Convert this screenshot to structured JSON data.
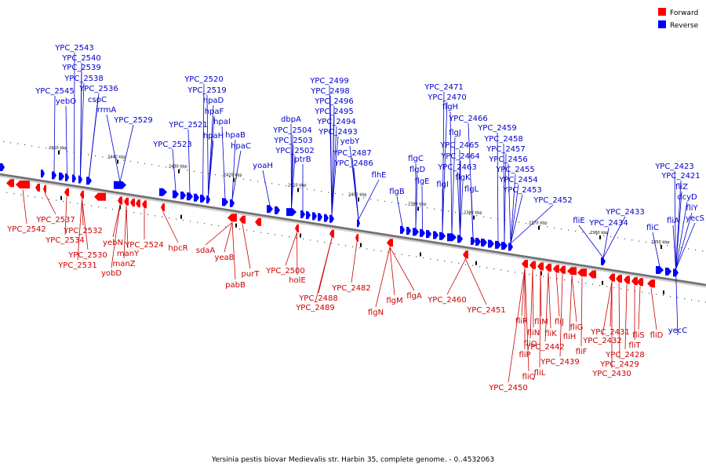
{
  "legend": {
    "forward": {
      "label": "Forward",
      "color": "#ff0000"
    },
    "reverse": {
      "label": "Reverse",
      "color": "#0000ff"
    }
  },
  "caption": "Yersinia pestis biovar Medievalis str. Harbin 35, complete genome. - 0..4532063",
  "ticks": [
    "2450 kbp",
    "2440 kbp",
    "2430 kbp",
    "2420 kbp",
    "2410 kbp",
    "2400 kbp",
    "2390 kbp",
    "2380 kbp",
    "2370 kbp",
    "2360 kbp",
    "2350 kbp"
  ],
  "reverse_labels": [
    "YPC_2543",
    "YPC_2540",
    "YPC_2539",
    "YPC_2538",
    "YPC_2545",
    "yebO",
    "YPC_2536",
    "cspC",
    "rrmA",
    "YPC_2529",
    "YPC_2520",
    "YPC_2519",
    "hpaD",
    "hpaF",
    "YPC_2521",
    "hpaI",
    "hpaH",
    "hpaB",
    "YPC_2523",
    "hpaC",
    "YPC_2499",
    "YPC_2498",
    "YPC_2496",
    "YPC_2495",
    "dbpA",
    "YPC_2494",
    "YPC_2504",
    "YPC_2493",
    "YPC_2503",
    "yebY",
    "YPC_2502",
    "ptrB",
    "YPC_2487",
    "yoaH",
    "YPC_2486",
    "flhE",
    "YPC_2471",
    "YPC_2470",
    "flgH",
    "YPC_2466",
    "flgJ",
    "YPC_2465",
    "YPC_2459",
    "YPC_2458",
    "YPC_2457",
    "YPC_2456",
    "YPC_2464",
    "flgC",
    "flgD",
    "YPC_2463",
    "flgK",
    "flgE",
    "flgI",
    "flgL",
    "flgB",
    "YPC_2455",
    "YPC_2454",
    "YPC_2453",
    "YPC_2452",
    "YPC_2433",
    "fliE",
    "YPC_2434",
    "fliC",
    "YPC_2423",
    "YPC_2421",
    "fliZ",
    "dcyD",
    "fliA",
    "fliY",
    "yecS",
    "yecC"
  ],
  "forward_labels": [
    "YPC_2537",
    "YPC_2542",
    "YPC_2532",
    "YPC_2534",
    "yebN",
    "YPC_2524",
    "manY",
    "YPC_2530",
    "manZ",
    "YPC_2531",
    "yobD",
    "hpcR",
    "sdaA",
    "yeaB",
    "pabB",
    "purT",
    "YPC_2500",
    "holE",
    "YPC_2482",
    "YPC_2488",
    "YPC_2489",
    "flgA",
    "flgM",
    "flgN",
    "YPC_2460",
    "YPC_2451",
    "fliR",
    "fliM",
    "fliJ",
    "fliG",
    "fliN",
    "fliK",
    "fliH",
    "fliO",
    "YPC_2442",
    "fliF",
    "fliP",
    "YPC_2439",
    "fliL",
    "fliQ",
    "YPC_2450",
    "YPC_2431",
    "YPC_2432",
    "fliS",
    "fliT",
    "YPC_2428",
    "YPC_2429",
    "YPC_2430",
    "fliD"
  ]
}
